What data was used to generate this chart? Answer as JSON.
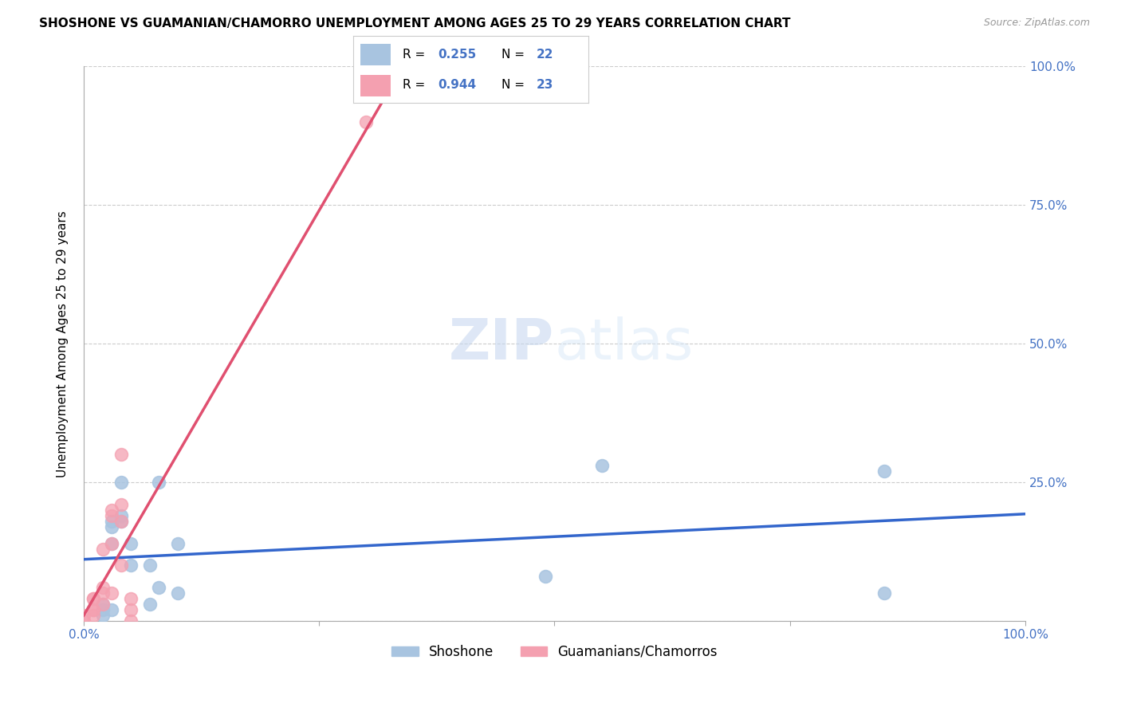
{
  "title": "SHOSHONE VS GUAMANIAN/CHAMORRO UNEMPLOYMENT AMONG AGES 25 TO 29 YEARS CORRELATION CHART",
  "source": "Source: ZipAtlas.com",
  "ylabel": "Unemployment Among Ages 25 to 29 years",
  "xlim": [
    0,
    1.0
  ],
  "ylim": [
    0,
    1.0
  ],
  "watermark_zip": "ZIP",
  "watermark_atlas": "atlas",
  "legend_r_shoshone": "0.255",
  "legend_n_shoshone": "22",
  "legend_r_guamanian": "0.944",
  "legend_n_guamanian": "23",
  "shoshone_color": "#a8c4e0",
  "guamanian_color": "#f4a0b0",
  "shoshone_line_color": "#3366cc",
  "guamanian_line_color": "#e05070",
  "shoshone_x": [
    0.02,
    0.02,
    0.02,
    0.03,
    0.03,
    0.03,
    0.03,
    0.04,
    0.04,
    0.04,
    0.05,
    0.05,
    0.07,
    0.07,
    0.08,
    0.08,
    0.1,
    0.1,
    0.49,
    0.55,
    0.85,
    0.85
  ],
  "shoshone_y": [
    0.01,
    0.02,
    0.03,
    0.02,
    0.14,
    0.17,
    0.18,
    0.18,
    0.19,
    0.25,
    0.1,
    0.14,
    0.03,
    0.1,
    0.06,
    0.25,
    0.05,
    0.14,
    0.08,
    0.28,
    0.05,
    0.27
  ],
  "guamanian_x": [
    0.0,
    0.0,
    0.01,
    0.01,
    0.01,
    0.01,
    0.01,
    0.02,
    0.02,
    0.02,
    0.02,
    0.03,
    0.03,
    0.03,
    0.03,
    0.04,
    0.04,
    0.04,
    0.04,
    0.05,
    0.05,
    0.05,
    0.3
  ],
  "guamanian_y": [
    0.0,
    0.01,
    0.01,
    0.02,
    0.02,
    0.04,
    0.04,
    0.03,
    0.05,
    0.06,
    0.13,
    0.05,
    0.14,
    0.19,
    0.2,
    0.1,
    0.18,
    0.21,
    0.3,
    0.0,
    0.02,
    0.04,
    0.9
  ],
  "title_fontsize": 11,
  "axis_label_fontsize": 11,
  "tick_fontsize": 11,
  "legend_fontsize": 12,
  "watermark_fontsize": 52,
  "background_color": "#ffffff",
  "grid_color": "#cccccc",
  "tick_color": "#4472c4"
}
